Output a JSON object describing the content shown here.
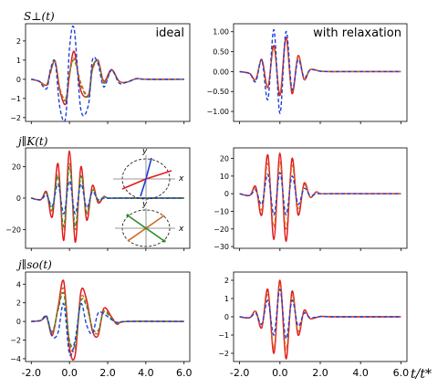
{
  "figure": {
    "row_labels": [
      "S⊥(t)",
      "j∥K(t)",
      "j∥so(t)"
    ],
    "x_axis_label": "t/t*",
    "inset_axis_labels": {
      "x": "x",
      "y": "y"
    }
  },
  "colors": {
    "red": "#e31a1c",
    "blue": "#1f3fd8",
    "green": "#2e8b2e",
    "orange": "#d2691e",
    "black": "#222222",
    "gray": "#888888"
  },
  "chart_data": [
    {
      "type": "line",
      "panel": "S-perp ideal",
      "title": "ideal",
      "ylabel": "S⊥(t)",
      "xlim": [
        -2.3,
        6.3
      ],
      "ylim": [
        -2.2,
        2.9
      ],
      "xticks": [
        "-2.0",
        "0.0",
        "2.0",
        "4.0",
        "6.0"
      ],
      "yticks": [
        {
          "value": -2,
          "label": "−2"
        },
        {
          "value": -1,
          "label": "−1"
        },
        {
          "value": 0,
          "label": "0"
        },
        {
          "value": 1,
          "label": "1"
        },
        {
          "value": 2,
          "label": "2"
        }
      ],
      "x": [
        -2.0,
        -1.6,
        -1.2,
        -1.0,
        -0.75,
        -0.5,
        -0.2,
        0.0,
        0.25,
        0.6,
        1.0,
        1.2,
        1.5,
        1.8,
        2.2,
        2.6,
        3.0,
        3.5,
        4.0,
        6.0
      ],
      "series": [
        {
          "color_key": "red",
          "style": "solid",
          "values": [
            0,
            -0.1,
            -0.3,
            0.4,
            0.9,
            -0.6,
            -1.3,
            0.2,
            1.45,
            -0.6,
            -0.8,
            0.6,
            0.95,
            -0.1,
            0.5,
            -0.1,
            -0.15,
            0.03,
            0,
            0
          ]
        },
        {
          "color_key": "green",
          "style": "dashed",
          "values": [
            0,
            -0.1,
            -0.3,
            0.35,
            0.95,
            -0.5,
            -1.1,
            0.3,
            1.0,
            -0.3,
            -0.9,
            0.5,
            1.0,
            -0.2,
            0.45,
            -0.1,
            -0.15,
            0.03,
            0,
            0
          ]
        },
        {
          "color_key": "orange",
          "style": "dashed",
          "values": [
            0,
            -0.1,
            -0.35,
            0.3,
            0.9,
            -0.5,
            -1.0,
            0.3,
            1.1,
            -0.2,
            -0.85,
            0.45,
            0.95,
            -0.15,
            0.45,
            -0.1,
            -0.15,
            0.03,
            0,
            0
          ]
        },
        {
          "color_key": "blue",
          "style": "dashed",
          "values": [
            0,
            -0.1,
            -0.5,
            0.5,
            0.9,
            -1.5,
            -2.0,
            1.6,
            2.6,
            -1.6,
            -1.3,
            1.0,
            0.8,
            -0.4,
            0.5,
            -0.2,
            -0.15,
            0.03,
            0,
            0
          ]
        }
      ]
    },
    {
      "type": "line",
      "panel": "S-perp with relaxation",
      "title": "with relaxation",
      "ylabel": "",
      "xlim": [
        -2.3,
        6.3
      ],
      "ylim": [
        -1.25,
        1.2
      ],
      "xticks": [
        "-2.0",
        "0.0",
        "2.0",
        "4.0",
        "6.0"
      ],
      "yticks": [
        {
          "value": -1.0,
          "label": "−1.00"
        },
        {
          "value": -0.5,
          "label": "−0.50"
        },
        {
          "value": 0.0,
          "label": "0.00"
        },
        {
          "value": 0.5,
          "label": "0.50"
        },
        {
          "value": 1.0,
          "label": "1.00"
        }
      ],
      "x": [
        -2.0,
        -1.5,
        -1.2,
        -0.9,
        -0.6,
        -0.3,
        0.0,
        0.3,
        0.6,
        0.9,
        1.2,
        1.5,
        2.0,
        2.5,
        3.0,
        6.0
      ],
      "series": [
        {
          "color_key": "red",
          "style": "solid",
          "values": [
            0,
            -0.05,
            -0.2,
            0.3,
            -0.4,
            0.65,
            -0.6,
            0.85,
            -0.55,
            0.4,
            -0.2,
            0.05,
            0.01,
            0,
            0,
            0
          ]
        },
        {
          "color_key": "orange",
          "style": "dashed",
          "values": [
            0,
            -0.05,
            -0.2,
            0.28,
            -0.38,
            0.6,
            -0.55,
            0.8,
            -0.5,
            0.38,
            -0.2,
            0.05,
            0.01,
            0,
            0,
            0
          ]
        },
        {
          "color_key": "blue",
          "style": "dashed",
          "values": [
            0,
            -0.05,
            -0.25,
            0.3,
            -0.7,
            1.05,
            -1.05,
            1.0,
            -0.45,
            0.3,
            -0.15,
            0.04,
            0.01,
            0,
            0,
            0
          ]
        }
      ]
    },
    {
      "type": "line",
      "panel": "jK parallel ideal",
      "title": "",
      "ylabel": "j∥K(t)",
      "xlim": [
        -2.3,
        6.3
      ],
      "ylim": [
        -32,
        32
      ],
      "xticks": [
        "-2.0",
        "0.0",
        "2.0",
        "4.0",
        "6.0"
      ],
      "yticks": [
        {
          "value": -20,
          "label": "−20"
        },
        {
          "value": 0,
          "label": "0"
        },
        {
          "value": 20,
          "label": "20"
        }
      ],
      "x": [
        -2.0,
        -1.5,
        -1.2,
        -0.9,
        -0.6,
        -0.3,
        0.0,
        0.3,
        0.6,
        0.9,
        1.2,
        1.5,
        1.8,
        2.0,
        2.5,
        3.0,
        6.0
      ],
      "series": [
        {
          "color_key": "red",
          "style": "solid",
          "values": [
            0,
            -1,
            4,
            -12,
            22,
            -27,
            30,
            -28,
            20,
            -14,
            8,
            -3,
            1,
            0,
            0,
            0,
            0
          ]
        },
        {
          "color_key": "orange",
          "style": "dashed",
          "values": [
            0,
            -1,
            3,
            -8,
            15,
            -20,
            22,
            -20,
            15,
            -10,
            6,
            -2,
            1,
            0,
            0,
            0,
            0
          ]
        },
        {
          "color_key": "green",
          "style": "dashed",
          "values": [
            0,
            -1,
            3,
            -7,
            14,
            -18,
            20,
            -18,
            14,
            -9,
            5,
            -2,
            1,
            0,
            0,
            0,
            0
          ]
        },
        {
          "color_key": "blue",
          "style": "dashed",
          "values": [
            0,
            -1,
            2,
            -5,
            9,
            -10,
            11,
            -10,
            9,
            -6,
            4,
            -1,
            0,
            0,
            0,
            0,
            0
          ]
        }
      ]
    },
    {
      "type": "line",
      "panel": "jK parallel with relaxation",
      "title": "",
      "ylabel": "",
      "xlim": [
        -2.3,
        6.3
      ],
      "ylim": [
        -31,
        26
      ],
      "xticks": [
        "-2.0",
        "0.0",
        "2.0",
        "4.0",
        "6.0"
      ],
      "yticks": [
        {
          "value": -30,
          "label": "−30"
        },
        {
          "value": -20,
          "label": "−20"
        },
        {
          "value": -10,
          "label": "−10"
        },
        {
          "value": 0,
          "label": "0"
        },
        {
          "value": 10,
          "label": "10"
        },
        {
          "value": 20,
          "label": "20"
        }
      ],
      "x": [
        -2.0,
        -1.5,
        -1.2,
        -0.9,
        -0.6,
        -0.3,
        0.0,
        0.3,
        0.6,
        0.9,
        1.2,
        1.5,
        1.8,
        2.0,
        2.5,
        3.0,
        6.0
      ],
      "series": [
        {
          "color_key": "red",
          "style": "solid",
          "values": [
            0,
            -1,
            4,
            -12,
            22,
            -26,
            23,
            -27,
            20,
            -12,
            6,
            -2,
            1,
            0,
            0,
            0,
            0
          ]
        },
        {
          "color_key": "orange",
          "style": "dashed",
          "values": [
            0,
            -1,
            3,
            -9,
            17,
            -19,
            18,
            -20,
            16,
            -9,
            5,
            -2,
            1,
            0,
            0,
            0,
            0
          ]
        },
        {
          "color_key": "blue",
          "style": "dashed",
          "values": [
            0,
            -1,
            2,
            -6,
            11,
            -12,
            12,
            -12,
            10,
            -6,
            3,
            -1,
            0,
            0,
            0,
            0,
            0
          ]
        }
      ]
    },
    {
      "type": "line",
      "panel": "jso parallel ideal",
      "title": "",
      "ylabel": "j∥so(t)",
      "xlim": [
        -2.3,
        6.3
      ],
      "ylim": [
        -4.3,
        5.3
      ],
      "xticks": [
        "-2.0",
        "0.0",
        "2.0",
        "4.0",
        "6.0"
      ],
      "yticks": [
        {
          "value": -4,
          "label": "−4"
        },
        {
          "value": -2,
          "label": "−2"
        },
        {
          "value": 0,
          "label": "0"
        },
        {
          "value": 2,
          "label": "2"
        },
        {
          "value": 4,
          "label": "4"
        }
      ],
      "x": [
        -2.0,
        -1.5,
        -1.2,
        -0.9,
        -0.6,
        -0.3,
        0.0,
        0.3,
        0.6,
        0.9,
        1.2,
        1.5,
        1.8,
        2.2,
        2.5,
        3.0,
        6.0
      ],
      "series": [
        {
          "color_key": "red",
          "style": "solid",
          "values": [
            0,
            0.1,
            0.5,
            -1.5,
            1.5,
            4.3,
            -2.8,
            -3.6,
            3.2,
            2.3,
            -1.0,
            -1.5,
            1.4,
            0.5,
            -0.3,
            0,
            0
          ]
        },
        {
          "color_key": "orange",
          "style": "dashed",
          "values": [
            0,
            0.1,
            0.4,
            -1.2,
            1.3,
            3.5,
            -2.3,
            -2.8,
            2.5,
            1.8,
            -0.8,
            -1.2,
            1.1,
            0.4,
            -0.2,
            0,
            0
          ]
        },
        {
          "color_key": "green",
          "style": "dashed",
          "values": [
            0,
            0.1,
            0.4,
            -1.1,
            1.2,
            3.0,
            -2.0,
            -2.4,
            2.2,
            1.6,
            -0.7,
            -1.0,
            1.0,
            0.3,
            -0.2,
            0,
            0
          ]
        },
        {
          "color_key": "blue",
          "style": "dashed",
          "values": [
            0,
            0.1,
            0.6,
            -1.6,
            -1.2,
            1.9,
            -3.5,
            -1.9,
            1.9,
            -0.4,
            -1.3,
            0.9,
            0.8,
            0.2,
            -0.1,
            0,
            0
          ]
        }
      ]
    },
    {
      "type": "line",
      "panel": "jso parallel with relaxation",
      "title": "",
      "ylabel": "",
      "xlim": [
        -2.3,
        6.3
      ],
      "ylim": [
        -2.45,
        2.45
      ],
      "xticks": [
        "-2.0",
        "0.0",
        "2.0",
        "4.0",
        "6.0"
      ],
      "yticks": [
        {
          "value": -2,
          "label": "−2"
        },
        {
          "value": -1,
          "label": "−1"
        },
        {
          "value": 0,
          "label": "0"
        },
        {
          "value": 1,
          "label": "1"
        },
        {
          "value": 2,
          "label": "2"
        }
      ],
      "x": [
        -2.0,
        -1.5,
        -1.2,
        -0.9,
        -0.6,
        -0.3,
        0.0,
        0.3,
        0.6,
        0.9,
        1.2,
        1.5,
        2.0,
        2.5,
        3.0,
        6.0
      ],
      "series": [
        {
          "color_key": "red",
          "style": "solid",
          "values": [
            0,
            -0.05,
            0.3,
            -0.6,
            1.5,
            -2.0,
            2.0,
            -2.3,
            1.4,
            -1.0,
            0.35,
            -0.1,
            0.02,
            0,
            0,
            0
          ]
        },
        {
          "color_key": "orange",
          "style": "dashed",
          "values": [
            0,
            -0.05,
            0.3,
            -0.5,
            1.2,
            -1.7,
            1.8,
            -1.8,
            1.2,
            -0.8,
            0.3,
            -0.1,
            0.02,
            0,
            0,
            0
          ]
        },
        {
          "color_key": "blue",
          "style": "dashed",
          "values": [
            0,
            -0.05,
            0.2,
            -0.4,
            0.9,
            -1.0,
            1.5,
            -1.2,
            0.9,
            -0.5,
            0.2,
            -0.05,
            0.01,
            0,
            0,
            0
          ]
        }
      ]
    }
  ]
}
